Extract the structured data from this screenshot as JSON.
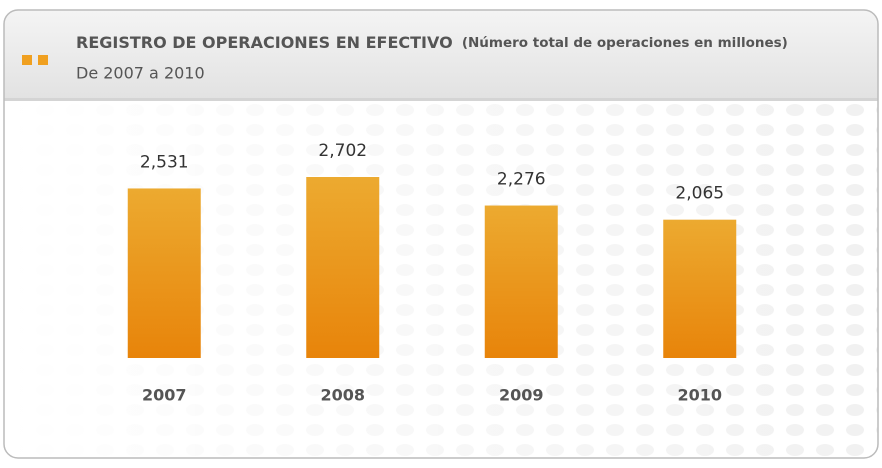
{
  "chart_data": {
    "type": "bar",
    "title": "REGISTRO DE OPERACIONES EN EFECTIVO",
    "title_note": "(Número total de operaciones en millones)",
    "subtitle": "De 2007 a 2010",
    "categories": [
      "2007",
      "2008",
      "2009",
      "2010"
    ],
    "values": [
      2531,
      2702,
      2276,
      2065
    ],
    "value_labels": [
      "2,531",
      "2,702",
      "2,276",
      "2,065"
    ],
    "color": "#e98f12"
  }
}
